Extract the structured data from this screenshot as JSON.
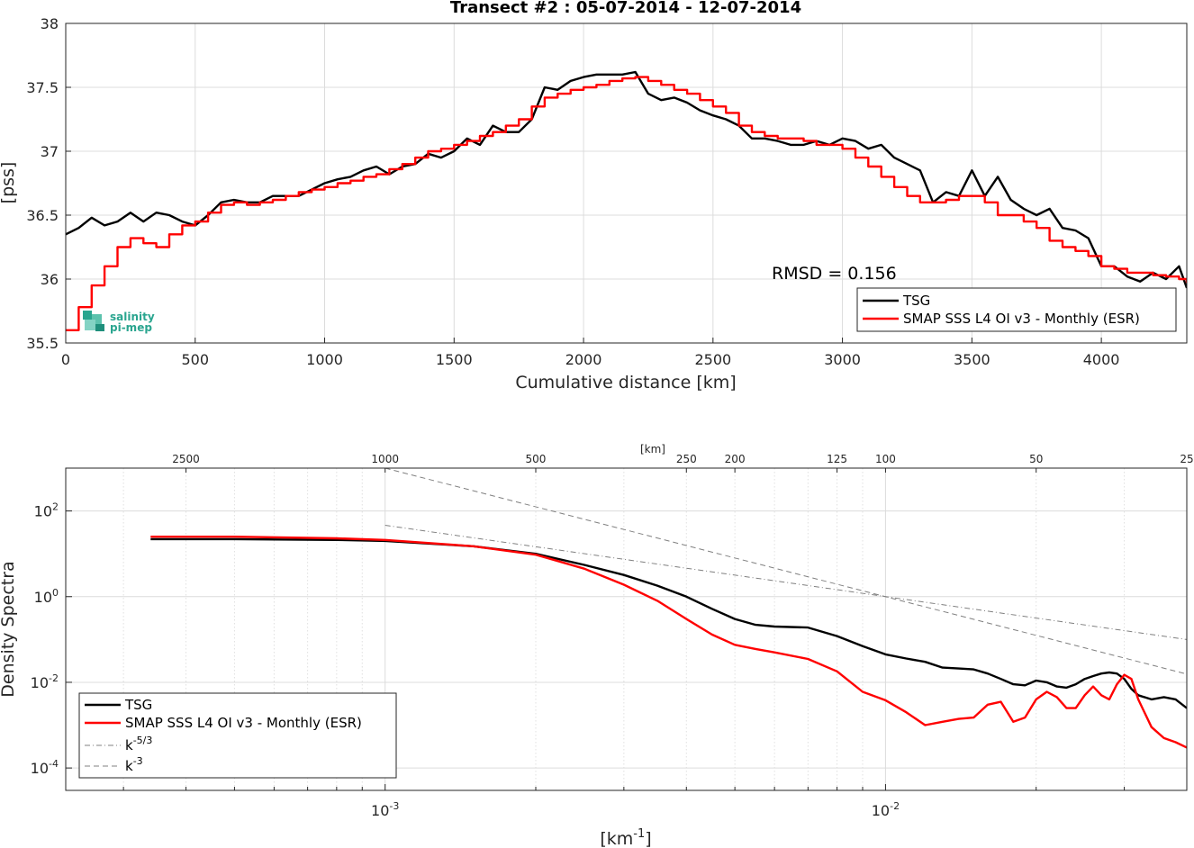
{
  "chart_data": [
    {
      "type": "line",
      "title": "Transect #2 : 05-07-2014 - 12-07-2014",
      "xlabel": "Cumulative distance [km]",
      "ylabel": "[pss]",
      "xlim": [
        0,
        4330
      ],
      "ylim": [
        35.5,
        38
      ],
      "xticks": [
        0,
        500,
        1000,
        1500,
        2000,
        2500,
        3000,
        3500,
        4000
      ],
      "yticks": [
        35.5,
        36,
        36.5,
        37,
        37.5,
        38
      ],
      "grid": true,
      "annotation": "RMSD = 0.156",
      "legend_position": "bottom-right",
      "logo": {
        "line1": "salinity",
        "line2": "pi-mep"
      },
      "series": [
        {
          "name": "TSG",
          "color": "#000000",
          "x": [
            0,
            50,
            100,
            150,
            200,
            250,
            300,
            350,
            400,
            450,
            500,
            550,
            600,
            650,
            700,
            750,
            800,
            850,
            900,
            950,
            1000,
            1050,
            1100,
            1150,
            1200,
            1250,
            1300,
            1350,
            1400,
            1450,
            1500,
            1550,
            1600,
            1650,
            1700,
            1750,
            1800,
            1850,
            1900,
            1950,
            2000,
            2050,
            2100,
            2150,
            2200,
            2250,
            2300,
            2350,
            2400,
            2450,
            2500,
            2550,
            2600,
            2650,
            2700,
            2750,
            2800,
            2850,
            2900,
            2950,
            3000,
            3050,
            3100,
            3150,
            3200,
            3250,
            3300,
            3350,
            3400,
            3450,
            3500,
            3550,
            3600,
            3650,
            3700,
            3750,
            3800,
            3850,
            3900,
            3950,
            4000,
            4050,
            4100,
            4150,
            4200,
            4250,
            4300,
            4330
          ],
          "y": [
            36.35,
            36.4,
            36.48,
            36.42,
            36.45,
            36.52,
            36.45,
            36.52,
            36.5,
            36.45,
            36.42,
            36.5,
            36.6,
            36.62,
            36.6,
            36.6,
            36.65,
            36.65,
            36.65,
            36.7,
            36.75,
            36.78,
            36.8,
            36.85,
            36.88,
            36.82,
            36.88,
            36.9,
            36.98,
            36.95,
            37.0,
            37.1,
            37.05,
            37.2,
            37.15,
            37.15,
            37.25,
            37.5,
            37.48,
            37.55,
            37.58,
            37.6,
            37.6,
            37.6,
            37.62,
            37.45,
            37.4,
            37.42,
            37.38,
            37.32,
            37.28,
            37.25,
            37.2,
            37.1,
            37.1,
            37.08,
            37.05,
            37.05,
            37.08,
            37.05,
            37.1,
            37.08,
            37.02,
            37.05,
            36.95,
            36.9,
            36.85,
            36.6,
            36.68,
            36.65,
            36.85,
            36.65,
            36.8,
            36.62,
            36.55,
            36.5,
            36.55,
            36.4,
            36.38,
            36.32,
            36.1,
            36.1,
            36.02,
            35.98,
            36.05,
            36.0,
            36.1,
            35.93
          ]
        },
        {
          "name": "SMAP SSS L4 OI v3 - Monthly (ESR)",
          "color": "#ff0000",
          "x": [
            0,
            50,
            100,
            150,
            200,
            250,
            300,
            350,
            400,
            450,
            500,
            550,
            600,
            650,
            700,
            750,
            800,
            850,
            900,
            950,
            1000,
            1050,
            1100,
            1150,
            1200,
            1250,
            1300,
            1350,
            1400,
            1450,
            1500,
            1550,
            1600,
            1650,
            1700,
            1750,
            1800,
            1850,
            1900,
            1950,
            2000,
            2050,
            2100,
            2150,
            2200,
            2250,
            2300,
            2350,
            2400,
            2450,
            2500,
            2550,
            2600,
            2650,
            2700,
            2750,
            2800,
            2850,
            2900,
            2950,
            3000,
            3050,
            3100,
            3150,
            3200,
            3250,
            3300,
            3350,
            3400,
            3450,
            3500,
            3550,
            3600,
            3650,
            3700,
            3750,
            3800,
            3850,
            3900,
            3950,
            4000,
            4050,
            4100,
            4150,
            4200,
            4250,
            4300,
            4330
          ],
          "y": [
            35.6,
            35.78,
            35.95,
            36.1,
            36.25,
            36.32,
            36.28,
            36.25,
            36.35,
            36.42,
            36.45,
            36.52,
            36.58,
            36.6,
            36.58,
            36.6,
            36.62,
            36.65,
            36.68,
            36.7,
            36.72,
            36.75,
            36.77,
            36.8,
            36.82,
            36.86,
            36.9,
            36.95,
            37.0,
            37.02,
            37.05,
            37.08,
            37.12,
            37.15,
            37.2,
            37.25,
            37.35,
            37.42,
            37.45,
            37.48,
            37.5,
            37.52,
            37.55,
            37.57,
            37.58,
            37.55,
            37.52,
            37.48,
            37.45,
            37.4,
            37.35,
            37.3,
            37.2,
            37.15,
            37.12,
            37.1,
            37.1,
            37.08,
            37.05,
            37.05,
            37.02,
            36.95,
            36.88,
            36.8,
            36.72,
            36.65,
            36.6,
            36.6,
            36.62,
            36.65,
            36.65,
            36.6,
            36.5,
            36.5,
            36.45,
            36.4,
            36.3,
            36.25,
            36.22,
            36.18,
            36.1,
            36.08,
            36.05,
            36.05,
            36.03,
            36.02,
            36.0,
            35.97
          ]
        }
      ]
    },
    {
      "type": "line",
      "title": "",
      "xlabel": "[km^-1]",
      "xlabel_base": "[km",
      "xlabel_exp": "-1",
      "xlabel_close": "]",
      "ylabel": "Density Spectra",
      "xscale": "log",
      "yscale": "log",
      "xlim": [
        0.00023,
        0.04
      ],
      "ylim": [
        3e-05,
        1000
      ],
      "xticks": [
        0.001,
        0.01
      ],
      "xtick_labels": [
        {
          "base": "10",
          "exp": "-3"
        },
        {
          "base": "10",
          "exp": "-2"
        }
      ],
      "yticks": [
        0.0001,
        0.01,
        1,
        100
      ],
      "ytick_labels": [
        {
          "base": "10",
          "exp": "-4"
        },
        {
          "base": "10",
          "exp": "-2"
        },
        {
          "base": "10",
          "exp": "0"
        },
        {
          "base": "10",
          "exp": "2"
        }
      ],
      "top_axis_label": "[km]",
      "top_axis_ticks": [
        2500,
        1000,
        500,
        250,
        200,
        125,
        100,
        50,
        25
      ],
      "grid": true,
      "legend_position": "bottom-left",
      "series": [
        {
          "name": "TSG",
          "color": "#000000",
          "x": [
            0.00034,
            0.0005,
            0.0008,
            0.001,
            0.0015,
            0.002,
            0.0025,
            0.003,
            0.0035,
            0.004,
            0.0045,
            0.005,
            0.0055,
            0.006,
            0.007,
            0.008,
            0.009,
            0.01,
            0.011,
            0.012,
            0.013,
            0.014,
            0.015,
            0.016,
            0.017,
            0.018,
            0.019,
            0.02,
            0.021,
            0.022,
            0.023,
            0.024,
            0.025,
            0.026,
            0.027,
            0.028,
            0.029,
            0.03,
            0.031,
            0.032,
            0.034,
            0.036,
            0.038,
            0.04
          ],
          "y": [
            22,
            22,
            21,
            20,
            15,
            10,
            5.5,
            3.2,
            1.8,
            1.0,
            0.52,
            0.3,
            0.22,
            0.2,
            0.19,
            0.12,
            0.07,
            0.045,
            0.036,
            0.03,
            0.022,
            0.021,
            0.02,
            0.016,
            0.012,
            0.009,
            0.0085,
            0.011,
            0.01,
            0.008,
            0.0075,
            0.009,
            0.012,
            0.014,
            0.016,
            0.017,
            0.016,
            0.012,
            0.007,
            0.005,
            0.004,
            0.0045,
            0.004,
            0.0025
          ]
        },
        {
          "name": "SMAP SSS L4 OI v3 - Monthly (ESR)",
          "color": "#ff0000",
          "x": [
            0.00034,
            0.0005,
            0.0008,
            0.001,
            0.0015,
            0.002,
            0.0025,
            0.003,
            0.0035,
            0.004,
            0.0045,
            0.005,
            0.0055,
            0.006,
            0.007,
            0.008,
            0.009,
            0.01,
            0.011,
            0.012,
            0.013,
            0.014,
            0.015,
            0.016,
            0.017,
            0.018,
            0.019,
            0.02,
            0.021,
            0.022,
            0.023,
            0.024,
            0.025,
            0.026,
            0.027,
            0.028,
            0.029,
            0.03,
            0.031,
            0.032,
            0.034,
            0.036,
            0.038,
            0.04
          ],
          "y": [
            25,
            25,
            23,
            21,
            15,
            9.5,
            4.5,
            1.9,
            0.8,
            0.3,
            0.13,
            0.075,
            0.06,
            0.05,
            0.035,
            0.018,
            0.006,
            0.0038,
            0.002,
            0.001,
            0.0012,
            0.0014,
            0.0015,
            0.003,
            0.0035,
            0.0012,
            0.0015,
            0.004,
            0.006,
            0.0045,
            0.0025,
            0.0025,
            0.005,
            0.008,
            0.005,
            0.004,
            0.009,
            0.015,
            0.012,
            0.004,
            0.0009,
            0.0005,
            0.0004,
            0.0003
          ]
        },
        {
          "name": "k^-5/3",
          "label_base": "k",
          "label_exp": "-5/3",
          "color": "#808080",
          "style": "dash-dot",
          "x": [
            0.001,
            0.04
          ],
          "y": [
            46.4,
            0.0999
          ]
        },
        {
          "name": "k^-3",
          "label_base": "k",
          "label_exp": "-3",
          "color": "#808080",
          "style": "dashed",
          "x": [
            0.001,
            0.04
          ],
          "y": [
            1000,
            0.0156
          ]
        }
      ]
    }
  ]
}
